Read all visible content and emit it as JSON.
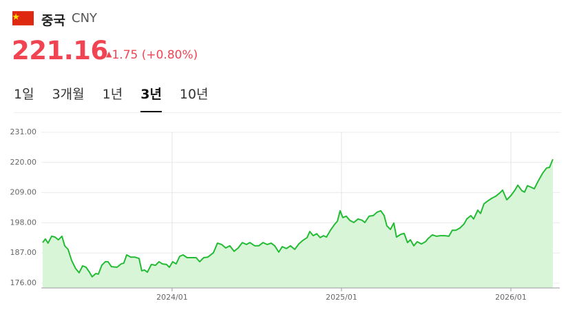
{
  "header": {
    "country": "중국",
    "currency": "CNY",
    "price": "221.16",
    "change": "1.75",
    "change_pct": "(+0.80%)",
    "tabs": [
      "1일",
      "3개월",
      "1년",
      "3년",
      "10년"
    ],
    "active_tab": 3
  },
  "chart_data": {
    "type": "area",
    "color": "#22bb33",
    "fill_color": "#d8f5d8",
    "grid": true,
    "xlim": [
      2023.228,
      2026.256
    ],
    "ylim": [
      176,
      231
    ],
    "xticks": [
      {
        "value": 2024,
        "label": "2024/01"
      },
      {
        "value": 2025,
        "label": "2025/01"
      },
      {
        "value": 2026,
        "label": "2026/01"
      }
    ],
    "yticks": [
      {
        "value": 176,
        "label": "176.00"
      },
      {
        "value": 187,
        "label": "187.00"
      },
      {
        "value": 198,
        "label": "198.00"
      },
      {
        "value": 209,
        "label": "209.00"
      },
      {
        "value": 220,
        "label": "220.00"
      },
      {
        "value": 231,
        "label": "231.00"
      }
    ],
    "x": [
      2023.236,
      2023.252,
      2023.268,
      2023.289,
      2023.309,
      2023.329,
      2023.35,
      2023.366,
      2023.386,
      2023.407,
      2023.431,
      2023.451,
      2023.472,
      2023.492,
      2023.512,
      2023.528,
      2023.549,
      2023.565,
      2023.585,
      2023.606,
      2023.622,
      2023.642,
      2023.675,
      2023.699,
      2023.715,
      2023.732,
      2023.756,
      2023.78,
      2023.805,
      2023.821,
      2023.837,
      2023.854,
      2023.878,
      2023.902,
      2023.923,
      2023.943,
      2023.967,
      2023.984,
      2024.004,
      2024.024,
      2024.045,
      2024.065,
      2024.089,
      2024.114,
      2024.142,
      2024.163,
      2024.187,
      2024.211,
      2024.244,
      2024.268,
      2024.293,
      2024.317,
      2024.341,
      2024.366,
      2024.39,
      2024.415,
      2024.439,
      2024.459,
      2024.488,
      2024.512,
      2024.537,
      2024.561,
      2024.585,
      2024.606,
      2024.63,
      2024.65,
      2024.675,
      2024.699,
      2024.724,
      2024.748,
      2024.772,
      2024.797,
      2024.813,
      2024.833,
      2024.854,
      2024.874,
      2024.894,
      2024.911,
      2024.935,
      2024.959,
      2024.976,
      2024.992,
      2025.008,
      2025.028,
      2025.049,
      2025.073,
      2025.098,
      2025.122,
      2025.138,
      2025.163,
      2025.187,
      2025.211,
      2025.232,
      2025.252,
      2025.268,
      2025.289,
      2025.309,
      2025.325,
      2025.35,
      2025.37,
      2025.39,
      2025.407,
      2025.427,
      2025.447,
      2025.472,
      2025.496,
      2025.512,
      2025.537,
      2025.561,
      2025.585,
      2025.61,
      2025.634,
      2025.654,
      2025.675,
      2025.699,
      2025.724,
      2025.74,
      2025.764,
      2025.78,
      2025.805,
      2025.821,
      2025.841,
      2025.862,
      2025.886,
      2025.911,
      2025.935,
      2025.951,
      2025.976,
      2026.0,
      2026.024,
      2026.041,
      2026.065,
      2026.081,
      2026.098,
      2026.122,
      2026.138,
      2026.163,
      2026.187,
      2026.211,
      2026.228,
      2026.248
    ],
    "values": [
      190.8,
      192.1,
      190.6,
      193.1,
      192.8,
      191.8,
      193.1,
      189.6,
      188.3,
      184.3,
      181.3,
      179.8,
      182.3,
      181.8,
      180.0,
      178.3,
      179.5,
      179.3,
      182.5,
      183.8,
      183.8,
      182.0,
      181.8,
      183.0,
      183.3,
      186.3,
      185.5,
      185.5,
      185.0,
      180.5,
      180.8,
      180.0,
      182.8,
      182.5,
      183.8,
      183.0,
      182.8,
      181.8,
      183.8,
      183.0,
      185.8,
      186.3,
      185.3,
      185.3,
      185.3,
      183.8,
      185.3,
      185.5,
      187.1,
      190.6,
      190.1,
      188.8,
      189.6,
      187.6,
      188.8,
      190.8,
      190.1,
      190.8,
      189.6,
      189.6,
      190.8,
      190.1,
      190.6,
      189.6,
      187.3,
      189.3,
      188.6,
      189.6,
      188.3,
      190.3,
      191.6,
      192.6,
      194.8,
      193.3,
      194.0,
      192.6,
      193.3,
      192.8,
      195.3,
      197.4,
      198.6,
      202.4,
      199.9,
      200.4,
      198.9,
      198.1,
      199.4,
      198.9,
      198.1,
      200.4,
      200.6,
      201.9,
      202.4,
      200.6,
      196.9,
      195.6,
      197.9,
      192.8,
      193.8,
      194.1,
      190.8,
      191.8,
      189.6,
      191.1,
      190.3,
      191.1,
      192.3,
      193.6,
      193.1,
      193.3,
      193.3,
      193.1,
      195.3,
      195.3,
      196.1,
      197.6,
      199.4,
      200.6,
      199.4,
      202.6,
      201.4,
      204.9,
      205.9,
      206.9,
      207.7,
      208.9,
      209.9,
      206.4,
      207.9,
      209.9,
      211.7,
      209.7,
      209.2,
      211.5,
      210.9,
      210.4,
      213.4,
      216.0,
      218.0,
      218.2,
      221.16
    ]
  }
}
